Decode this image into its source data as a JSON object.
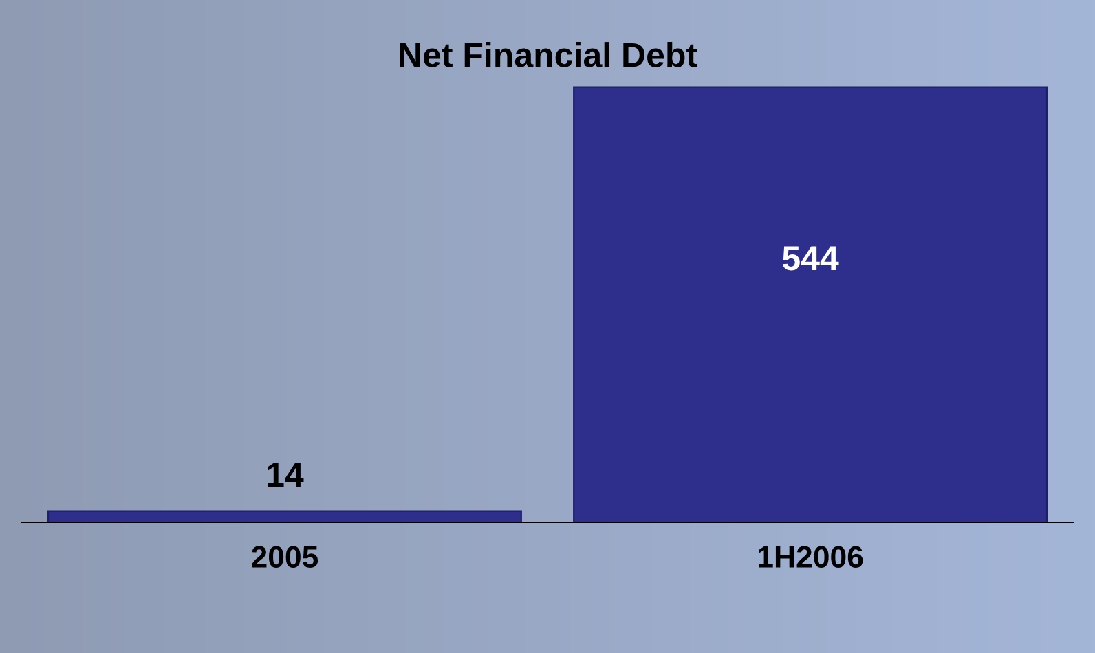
{
  "chart_data": {
    "type": "bar",
    "title": "Net Financial Debt",
    "categories": [
      "2005",
      "1H2006"
    ],
    "values": [
      14,
      544
    ],
    "color": "#2e2f8c",
    "data_labels": true,
    "grid": false,
    "legend": false
  }
}
